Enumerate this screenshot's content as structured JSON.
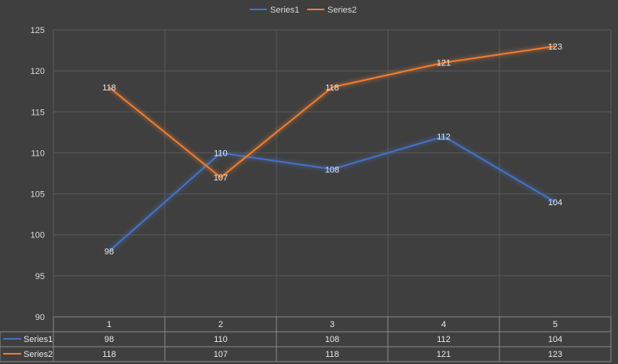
{
  "chart_data": {
    "type": "line",
    "categories": [
      "1",
      "2",
      "3",
      "4",
      "5"
    ],
    "series": [
      {
        "name": "Series1",
        "values": [
          98,
          110,
          108,
          112,
          104
        ]
      },
      {
        "name": "Series2",
        "values": [
          118,
          107,
          118,
          121,
          123
        ]
      }
    ],
    "ylim": [
      90,
      125
    ],
    "y_ticks": [
      90,
      95,
      100,
      105,
      110,
      115,
      120,
      125
    ],
    "grid": true,
    "legend": "top-center",
    "data_table": true,
    "colors": {
      "background": "#3f3f3f",
      "grid": "#5a5a5a",
      "series1": "#4472c4",
      "series2": "#ed7d31"
    }
  }
}
